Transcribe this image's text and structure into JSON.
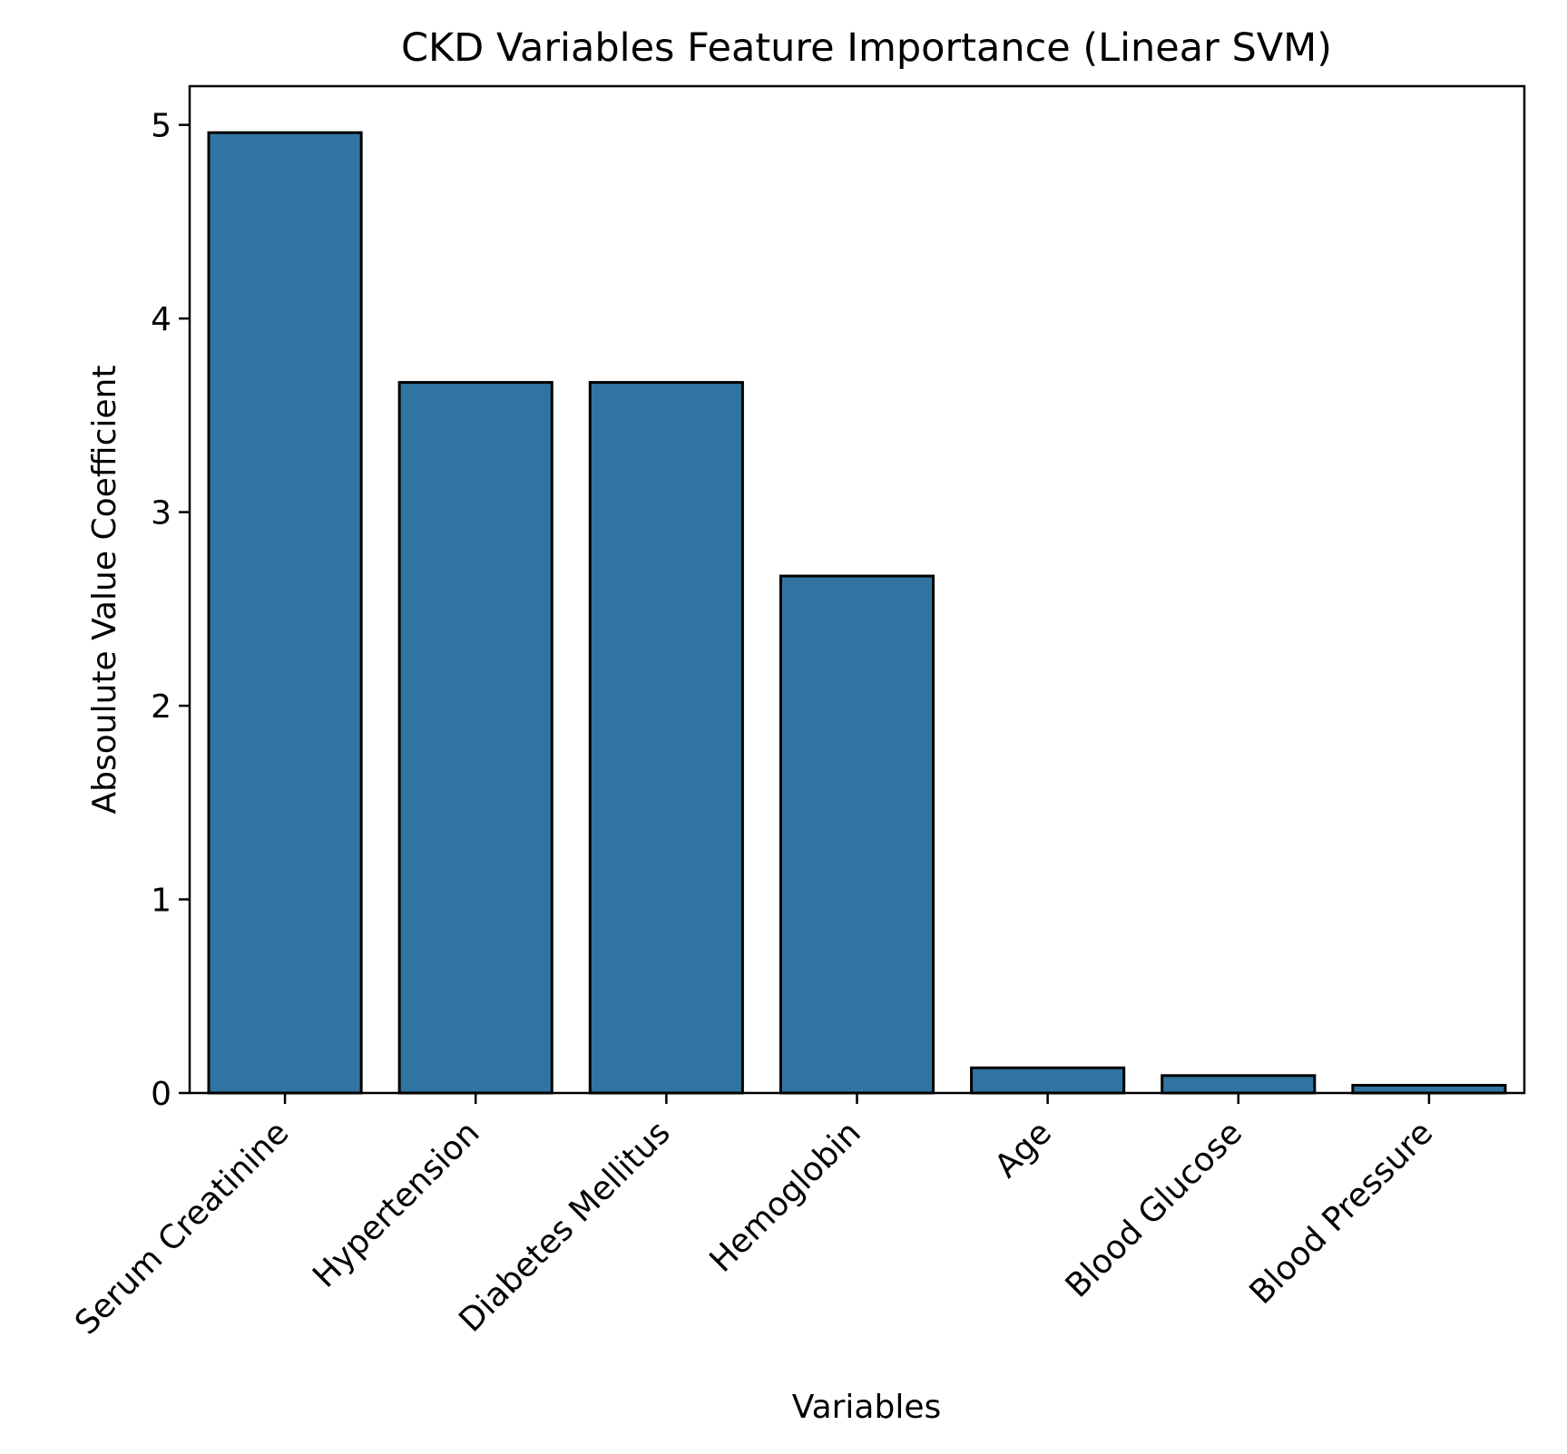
{
  "chart_data": {
    "type": "bar",
    "title": "CKD Variables Feature Importance (Linear SVM)",
    "xlabel": "Variables",
    "ylabel": "Absoulute Value Coefficient",
    "categories": [
      "Serum Creatinine",
      "Hypertension",
      "Diabetes Mellitus",
      "Hemoglobin",
      "Age",
      "Blood Glucose",
      "Blood Pressure"
    ],
    "values": [
      4.96,
      3.67,
      3.67,
      2.67,
      0.13,
      0.09,
      0.04
    ],
    "ylim": [
      0,
      5.2
    ],
    "yticks": [
      "0",
      "1",
      "2",
      "3",
      "4",
      "5"
    ],
    "grid": false,
    "bar_color": "#3274a1",
    "edge_color": "#000000"
  }
}
